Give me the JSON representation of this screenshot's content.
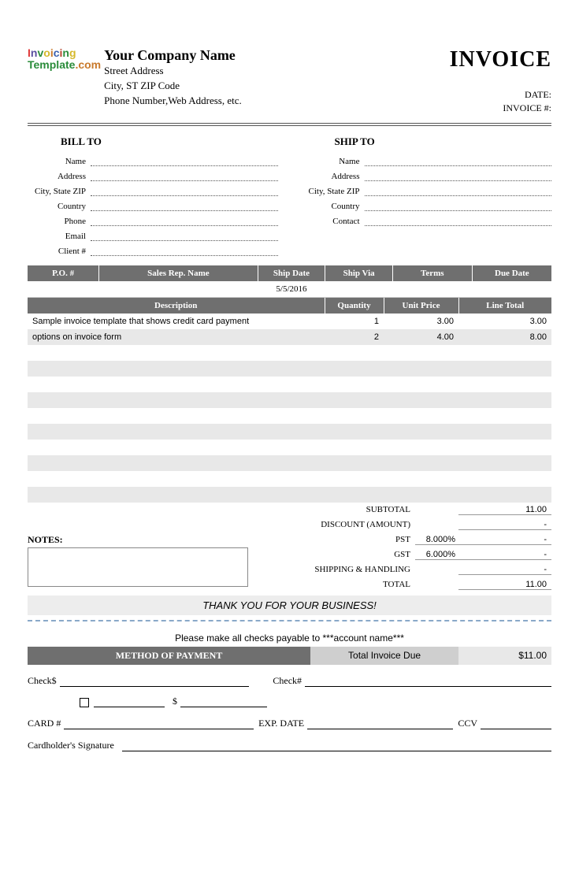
{
  "header": {
    "company_name": "Your Company Name",
    "street": "Street Address",
    "city_line": "City, ST  ZIP Code",
    "phone_line": "Phone Number,Web Address, etc.",
    "invoice_title": "INVOICE",
    "date_label": "DATE:",
    "invoice_no_label": "INVOICE #:"
  },
  "logo": {
    "invoicing_label": "Invoicing",
    "template_label": "Template",
    "com_label": ".com",
    "colors": [
      "#e03a3a",
      "#5a4fa0",
      "#2a8c3a",
      "#d6b92c",
      "#c97a2c",
      "#3a60b0",
      "#b5432c",
      "#2a8c3a",
      "#d6b92c"
    ]
  },
  "bill_to": {
    "title": "BILL TO",
    "fields": [
      "Name",
      "Address",
      "City, State ZIP",
      "Country",
      "Phone",
      "Email",
      "Client #"
    ]
  },
  "ship_to": {
    "title": "SHIP TO",
    "fields": [
      "Name",
      "Address",
      "City, State ZIP",
      "Country",
      "Contact"
    ]
  },
  "meta_table": {
    "headers": [
      "P.O. #",
      "Sales Rep. Name",
      "Ship Date",
      "Ship Via",
      "Terms",
      "Due Date"
    ],
    "values": [
      "",
      "",
      "5/5/2016",
      "",
      "",
      ""
    ],
    "col_widths": [
      "90px",
      "200px",
      "85px",
      "85px",
      "100px",
      "100px"
    ]
  },
  "items_table": {
    "headers": [
      "Description",
      "Quantity",
      "Unit Price",
      "Line Total"
    ],
    "col_widths": [
      "auto",
      "75px",
      "95px",
      "118px"
    ],
    "rows": [
      {
        "desc": "Sample invoice template that shows credit card payment",
        "qty": "1",
        "price": "3.00",
        "total": "3.00"
      },
      {
        "desc": "options on invoice form",
        "qty": "2",
        "price": "4.00",
        "total": "8.00"
      },
      {
        "desc": "",
        "qty": "",
        "price": "",
        "total": ""
      },
      {
        "desc": "",
        "qty": "",
        "price": "",
        "total": ""
      },
      {
        "desc": "",
        "qty": "",
        "price": "",
        "total": ""
      },
      {
        "desc": "",
        "qty": "",
        "price": "",
        "total": ""
      },
      {
        "desc": "",
        "qty": "",
        "price": "",
        "total": ""
      },
      {
        "desc": "",
        "qty": "",
        "price": "",
        "total": ""
      },
      {
        "desc": "",
        "qty": "",
        "price": "",
        "total": ""
      },
      {
        "desc": "",
        "qty": "",
        "price": "",
        "total": ""
      },
      {
        "desc": "",
        "qty": "",
        "price": "",
        "total": ""
      },
      {
        "desc": "",
        "qty": "",
        "price": "",
        "total": ""
      }
    ]
  },
  "notes": {
    "label": "NOTES:"
  },
  "totals": {
    "rows": [
      {
        "label": "SUBTOTAL",
        "rate": "",
        "value": "11.00"
      },
      {
        "label": "DISCOUNT (AMOUNT)",
        "rate": "",
        "value": "-"
      },
      {
        "label": "PST",
        "rate": "8.000%",
        "value": "-"
      },
      {
        "label": "GST",
        "rate": "6.000%",
        "value": "-"
      },
      {
        "label": "SHIPPING & HANDLING",
        "rate": "",
        "value": "-"
      },
      {
        "label": "TOTAL",
        "rate": "",
        "value": "11.00"
      }
    ]
  },
  "footer": {
    "thank_you": "THANK YOU FOR YOUR BUSINESS!",
    "payable": "Please make all checks payable to ***account name***",
    "method_label": "METHOD OF PAYMENT",
    "total_due_label": "Total Invoice Due",
    "total_due_value": "$11.00",
    "check_amount_label": "Check$",
    "check_no_label": "Check#",
    "card_no_label": "CARD #",
    "exp_label": "EXP. DATE",
    "ccv_label": "CCV",
    "sig_label": "Cardholder's Signature",
    "dollar_sign": "$"
  },
  "colors": {
    "header_bg": "#6f6f6f",
    "header_fg": "#ffffff",
    "alt_row_bg": "#e8e8e8",
    "thank_bg": "#ededed",
    "dash_rule": "#8aa9c9",
    "due_label_bg": "#cfcfcf"
  }
}
